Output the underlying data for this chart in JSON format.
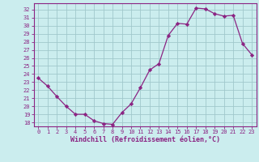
{
  "x": [
    0,
    1,
    2,
    3,
    4,
    5,
    6,
    7,
    8,
    9,
    10,
    11,
    12,
    13,
    14,
    15,
    16,
    17,
    18,
    19,
    20,
    21,
    22,
    23
  ],
  "y": [
    23.5,
    22.5,
    21.2,
    20.0,
    19.0,
    19.0,
    18.2,
    17.85,
    17.75,
    19.2,
    20.3,
    22.3,
    24.5,
    25.3,
    28.8,
    30.3,
    30.2,
    32.2,
    32.1,
    31.5,
    31.2,
    31.3,
    27.8,
    26.4
  ],
  "line_color": "#8B2483",
  "marker": "D",
  "marker_size": 2.2,
  "bg_color": "#cbedee",
  "grid_color": "#a0c8cc",
  "xlabel": "Windchill (Refroidissement éolien,°C)",
  "xlabel_color": "#8B2483",
  "ylabel_ticks": [
    18,
    19,
    20,
    21,
    22,
    23,
    24,
    25,
    26,
    27,
    28,
    29,
    30,
    31,
    32
  ],
  "xlim": [
    -0.5,
    23.5
  ],
  "ylim": [
    17.5,
    32.8
  ],
  "tick_label_color": "#8B2483",
  "axis_color": "#8B2483",
  "tick_fontsize": 5.0,
  "xlabel_fontsize": 6.0,
  "linewidth": 0.9
}
